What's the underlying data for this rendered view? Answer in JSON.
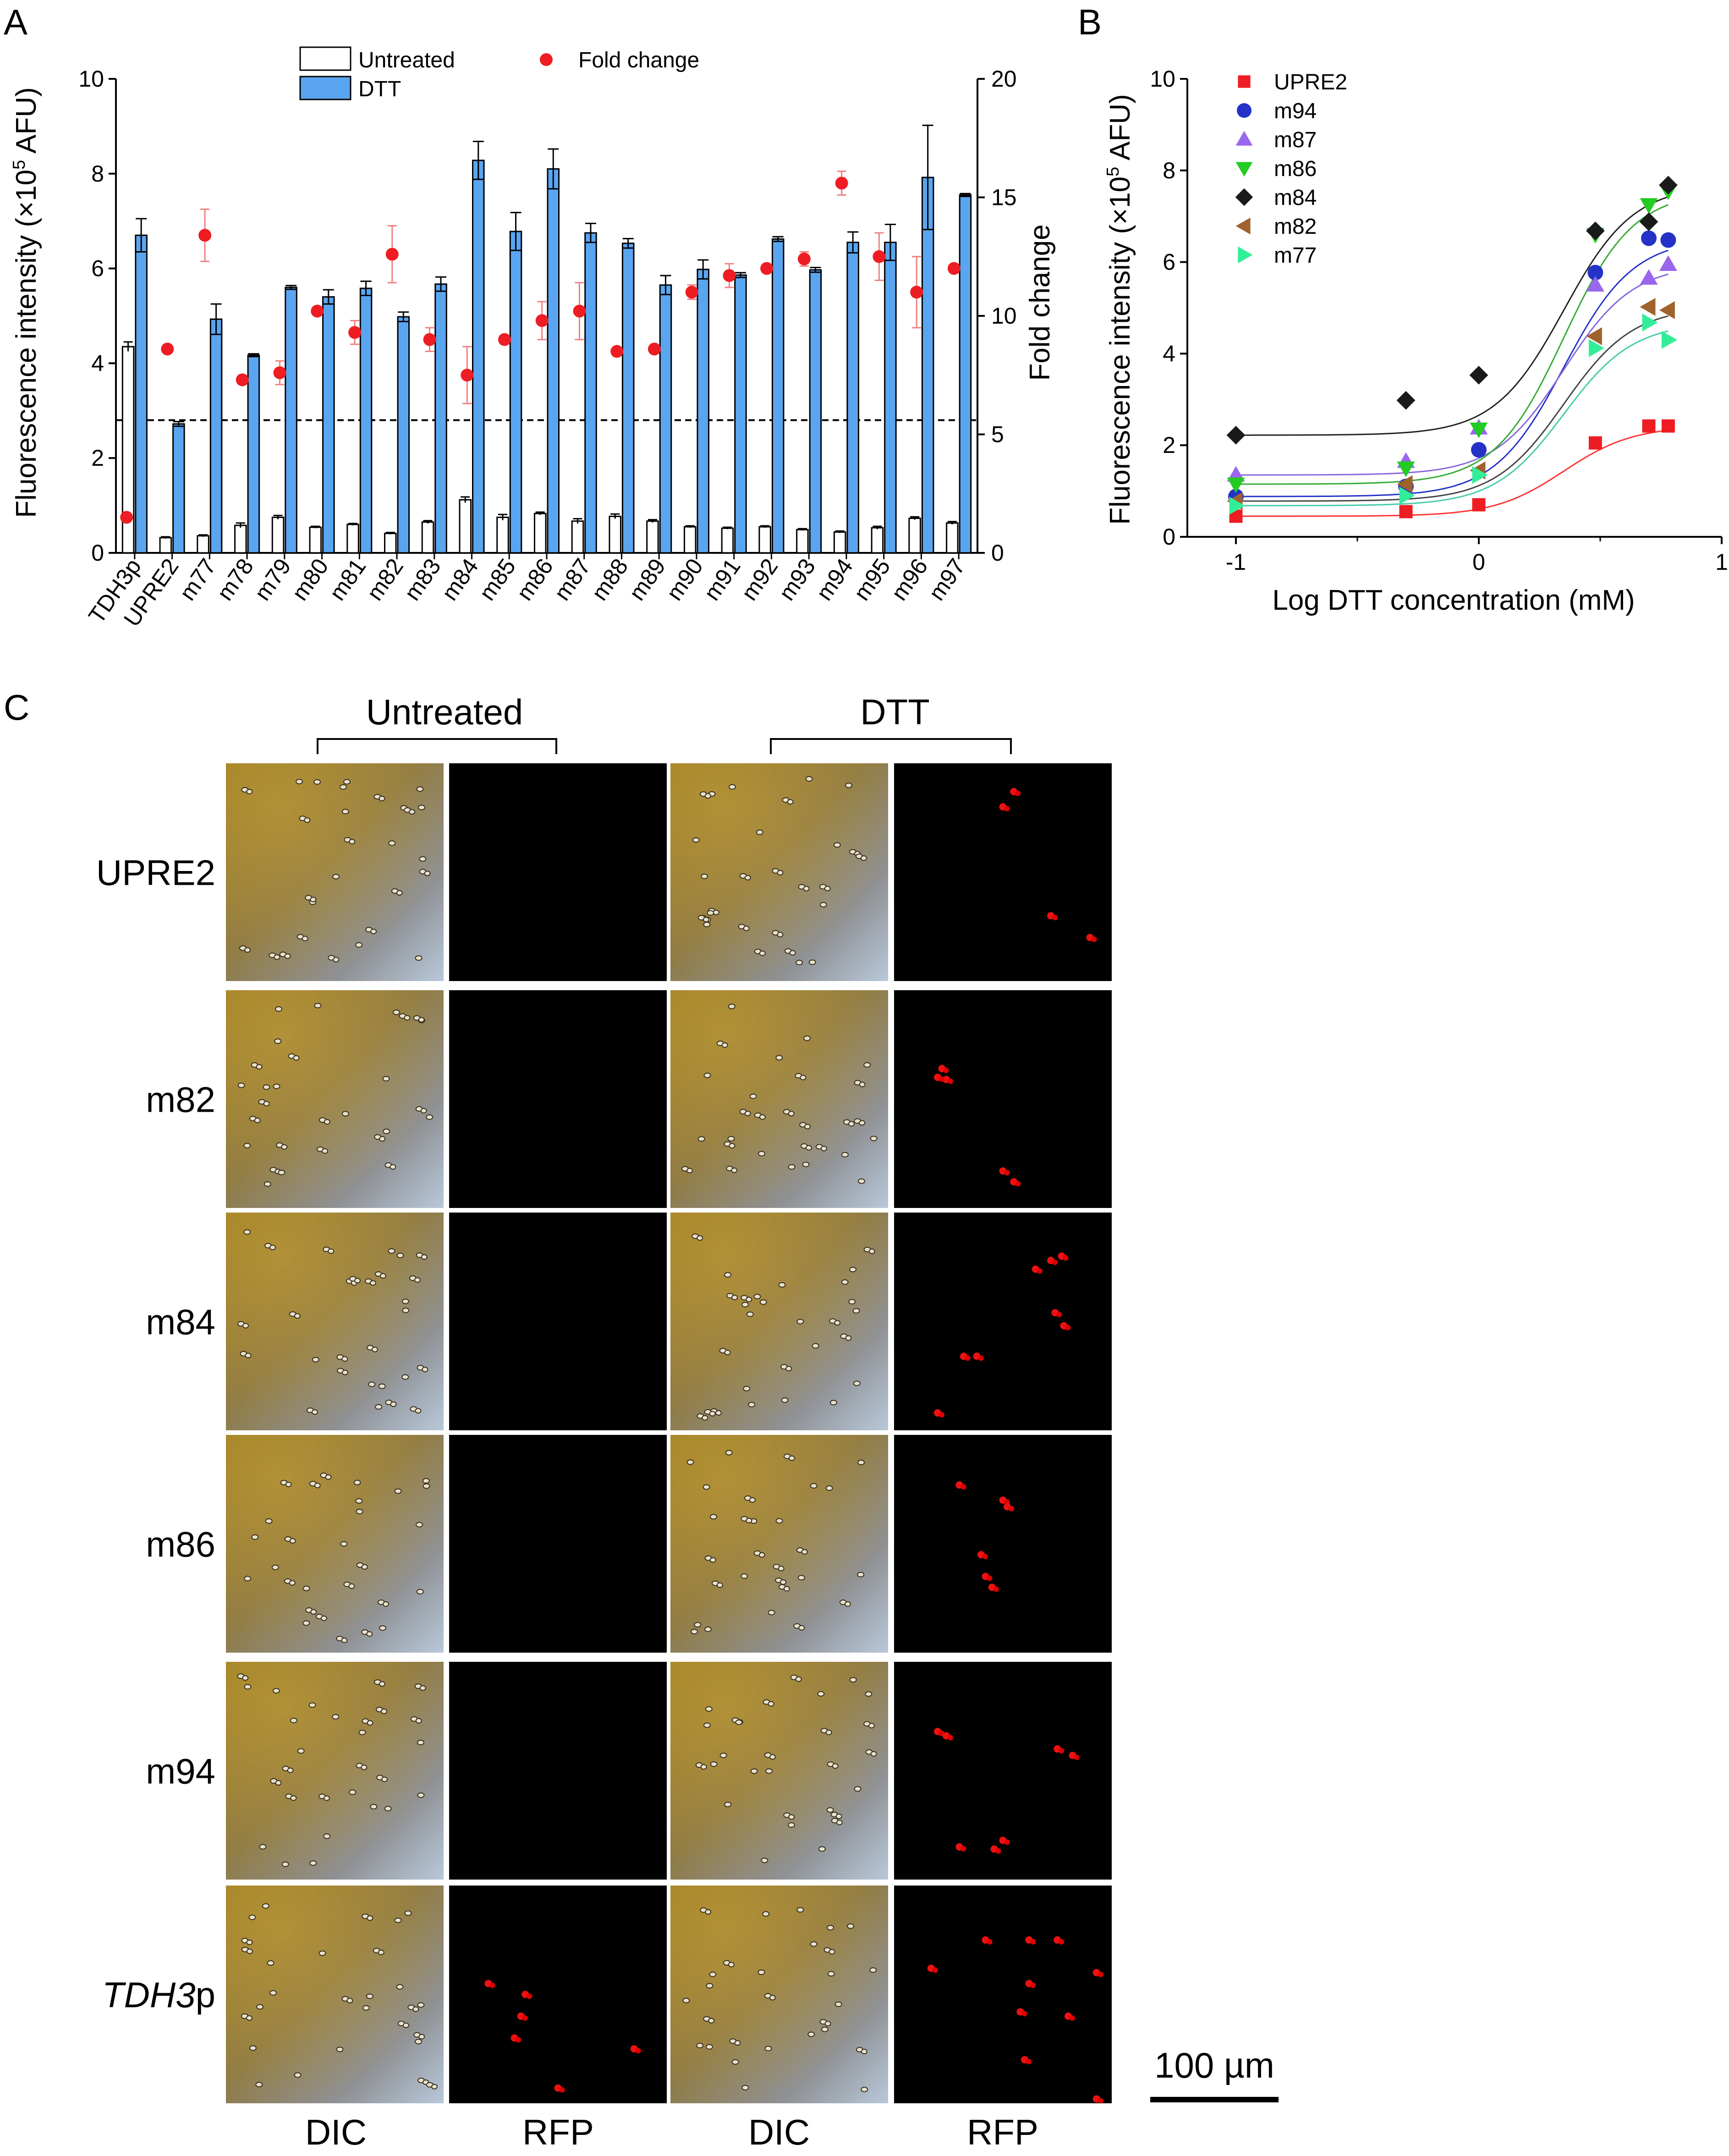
{
  "panelA": {
    "letter": "A",
    "chart_data": {
      "type": "bar",
      "categories": [
        "TDH3p",
        "UPRE2",
        "m77",
        "m78",
        "m79",
        "m80",
        "m81",
        "m82",
        "m83",
        "m84",
        "m85",
        "m86",
        "m87",
        "m88",
        "m89",
        "m90",
        "m91",
        "m92",
        "m93",
        "m94",
        "m95",
        "m96",
        "m97"
      ],
      "series": [
        {
          "name": "Untreated",
          "values": [
            4.35,
            0.32,
            0.36,
            0.58,
            0.75,
            0.54,
            0.6,
            0.41,
            0.65,
            1.12,
            0.75,
            0.83,
            0.67,
            0.77,
            0.67,
            0.55,
            0.52,
            0.55,
            0.49,
            0.44,
            0.53,
            0.73,
            0.63
          ],
          "errors": [
            0.1,
            0.02,
            0.02,
            0.05,
            0.04,
            0.02,
            0.02,
            0.02,
            0.03,
            0.06,
            0.06,
            0.03,
            0.05,
            0.05,
            0.03,
            0.02,
            0.02,
            0.02,
            0.02,
            0.02,
            0.03,
            0.03,
            0.03
          ]
        },
        {
          "name": "DTT",
          "values": [
            6.7,
            2.72,
            4.93,
            4.17,
            5.6,
            5.4,
            5.58,
            4.98,
            5.67,
            8.28,
            6.78,
            8.1,
            6.75,
            6.53,
            5.65,
            5.98,
            5.86,
            6.62,
            5.97,
            6.55,
            6.55,
            7.92,
            7.55
          ],
          "errors": [
            0.35,
            0.05,
            0.32,
            0.03,
            0.04,
            0.15,
            0.15,
            0.1,
            0.15,
            0.4,
            0.4,
            0.42,
            0.2,
            0.1,
            0.2,
            0.2,
            0.05,
            0.05,
            0.05,
            0.22,
            0.38,
            1.1,
            0.03
          ]
        },
        {
          "name": "Fold change",
          "axis": "right",
          "values": [
            1.5,
            8.6,
            13.4,
            7.3,
            7.6,
            10.2,
            9.3,
            12.6,
            9.0,
            7.5,
            9.0,
            9.8,
            10.2,
            8.5,
            8.6,
            11.0,
            11.7,
            12.0,
            12.4,
            15.6,
            12.5,
            11.0,
            12.0
          ],
          "errors": [
            0,
            0,
            1.1,
            0,
            0.5,
            0,
            0.5,
            1.2,
            0.5,
            1.2,
            0,
            0.8,
            1.2,
            0,
            0,
            0.3,
            0.5,
            0,
            0.3,
            0.5,
            1.0,
            1.5,
            0
          ]
        }
      ],
      "ylabel": "Fluorescence intensity (×10",
      "ylabel_sup": "5",
      "ylabel_tail": " AFU)",
      "y2label": "Fold change",
      "ylim": [
        0,
        10
      ],
      "y2lim": [
        0,
        20
      ],
      "yticks": [
        0,
        2,
        4,
        6,
        8,
        10
      ],
      "y2ticks": [
        0,
        5,
        10,
        15,
        20
      ],
      "reference_line": 2.8,
      "legend_untreated": "Untreated",
      "legend_dtt": "DTT",
      "legend_fold": "Fold change",
      "colors": {
        "untreated": "#ffffff",
        "dtt": "#5aa5f0",
        "fold": "#ee1d23",
        "foldErr": "#f08080"
      }
    }
  },
  "panelB": {
    "letter": "B",
    "chart_data": {
      "type": "scatter",
      "x": [
        -1,
        -0.3,
        0,
        0.48,
        0.7,
        0.78
      ],
      "series": [
        {
          "name": "UPRE2",
          "marker": "square",
          "color": "#ee1d23",
          "values": [
            0.45,
            0.55,
            0.7,
            2.05,
            2.42,
            2.42
          ]
        },
        {
          "name": "m94",
          "marker": "circle",
          "color": "#2432c8",
          "values": [
            0.88,
            1.1,
            1.9,
            5.77,
            6.52,
            6.48
          ]
        },
        {
          "name": "m87",
          "marker": "triangle-up",
          "color": "#9966ee",
          "values": [
            1.35,
            1.65,
            2.38,
            5.5,
            5.65,
            5.95
          ]
        },
        {
          "name": "m86",
          "marker": "triangle-down",
          "color": "#22cc22",
          "values": [
            1.15,
            1.5,
            2.35,
            6.6,
            7.25,
            7.55
          ]
        },
        {
          "name": "m84",
          "marker": "diamond",
          "color": "#1a1a1a",
          "values": [
            2.22,
            2.98,
            3.53,
            6.68,
            6.88,
            7.68
          ]
        },
        {
          "name": "m82",
          "marker": "triangle-left",
          "color": "#a0622d",
          "values": [
            0.78,
            1.15,
            1.45,
            4.38,
            5.02,
            4.95
          ]
        },
        {
          "name": "m77",
          "marker": "triangle-right",
          "color": "#33ee99",
          "values": [
            0.68,
            0.9,
            1.35,
            4.12,
            4.68,
            4.3
          ]
        }
      ],
      "curve_colors": [
        "#ff3333",
        "#2232c8",
        "#8866dd",
        "#33aa33",
        "#222222",
        "#444444",
        "#44ccaa"
      ],
      "xlabel": "Log DTT concentration (mM)",
      "ylabel": "Fluorescence intensity (×10",
      "ylabel_sup": "5",
      "ylabel_tail": " AFU)",
      "xlim": [
        -1.2,
        1
      ],
      "ylim": [
        0,
        10
      ],
      "xticks": [
        -1,
        0,
        1
      ],
      "yticks": [
        0,
        2,
        4,
        6,
        8,
        10
      ]
    }
  },
  "panelC": {
    "letter": "C",
    "header_untreated": "Untreated",
    "header_dtt": "DTT",
    "rows": [
      {
        "label": "UPRE2",
        "rfp_untreated": [],
        "rfp_dtt": [
          [
            0.55,
            0.13
          ],
          [
            0.5,
            0.2
          ],
          [
            0.72,
            0.7
          ],
          [
            0.9,
            0.8
          ]
        ]
      },
      {
        "label": "m82",
        "rfp_untreated": [],
        "rfp_dtt": [
          [
            0.22,
            0.36
          ],
          [
            0.24,
            0.41
          ],
          [
            0.2,
            0.4
          ],
          [
            0.5,
            0.83
          ],
          [
            0.55,
            0.88
          ]
        ]
      },
      {
        "label": "m84",
        "rfp_untreated": [],
        "rfp_dtt": [
          [
            0.65,
            0.26
          ],
          [
            0.72,
            0.22
          ],
          [
            0.77,
            0.2
          ],
          [
            0.74,
            0.46
          ],
          [
            0.78,
            0.52
          ],
          [
            0.32,
            0.66
          ],
          [
            0.38,
            0.66
          ],
          [
            0.2,
            0.92
          ]
        ]
      },
      {
        "label": "m86",
        "rfp_untreated": [],
        "rfp_dtt": [
          [
            0.3,
            0.23
          ],
          [
            0.5,
            0.3
          ],
          [
            0.52,
            0.33
          ],
          [
            0.4,
            0.55
          ],
          [
            0.42,
            0.65
          ],
          [
            0.45,
            0.7
          ]
        ]
      },
      {
        "label": "m94",
        "rfp_untreated": [],
        "rfp_dtt": [
          [
            0.2,
            0.32
          ],
          [
            0.24,
            0.34
          ],
          [
            0.75,
            0.4
          ],
          [
            0.82,
            0.43
          ],
          [
            0.3,
            0.85
          ],
          [
            0.5,
            0.82
          ],
          [
            0.46,
            0.86
          ]
        ]
      },
      {
        "label": "TDH3",
        "label_suffix": "p",
        "rfp_untreated": [
          [
            0.18,
            0.45
          ],
          [
            0.35,
            0.5
          ],
          [
            0.33,
            0.6
          ],
          [
            0.3,
            0.7
          ],
          [
            0.85,
            0.75
          ],
          [
            0.5,
            0.93
          ]
        ],
        "rfp_dtt": [
          [
            0.42,
            0.25
          ],
          [
            0.62,
            0.25
          ],
          [
            0.75,
            0.25
          ],
          [
            0.17,
            0.38
          ],
          [
            0.62,
            0.45
          ],
          [
            0.58,
            0.58
          ],
          [
            0.93,
            0.4
          ],
          [
            0.8,
            0.6
          ],
          [
            0.6,
            0.8
          ],
          [
            0.93,
            0.98
          ]
        ]
      }
    ],
    "col_labels": [
      "DIC",
      "RFP",
      "DIC",
      "RFP"
    ],
    "scale_bar": "100 µm"
  }
}
